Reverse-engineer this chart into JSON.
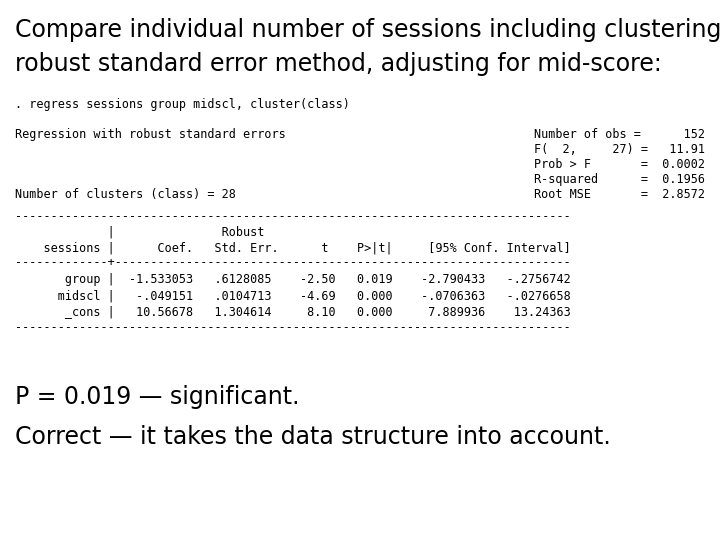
{
  "title_line1": "Compare individual number of sessions including clustering,",
  "title_line2": "robust standard error method, adjusting for mid-score:",
  "command_line": ". regress sessions group midscl, cluster(class)",
  "reg_label": "Regression with robust standard errors",
  "stats_right": [
    "Number of obs =      152",
    "F(  2,     27) =   11.91",
    "Prob > F       =  0.0002",
    "R-squared      =  0.1956",
    "Root MSE       =  2.8572"
  ],
  "clusters_line": "Number of clusters (class) = 28",
  "separator": "------------------------------------------------------------------------------",
  "header1": "             |               Robust",
  "header2": "    sessions |      Coef.   Std. Err.      t    P>|t|     [95% Conf. Interval]",
  "sep2": "-------------+----------------------------------------------------------------",
  "rows": [
    "       group |  -1.533053   .6128085    -2.50   0.019    -2.790433   -.2756742",
    "      midscl |   -.049151   .0104713    -4.69   0.000    -.0706363   -.0276658",
    "       _cons |   10.56678   1.304614     8.10   0.000     7.889936    13.24363"
  ],
  "sep3": "------------------------------------------------------------------------------",
  "conclusion1": "P = 0.019 — significant.",
  "conclusion2": "Correct — it takes the data structure into account.",
  "bg_color": "#ffffff",
  "text_color": "#000000",
  "title_fontsize": 17,
  "mono_fontsize": 8.5,
  "conclusion_fontsize": 17
}
